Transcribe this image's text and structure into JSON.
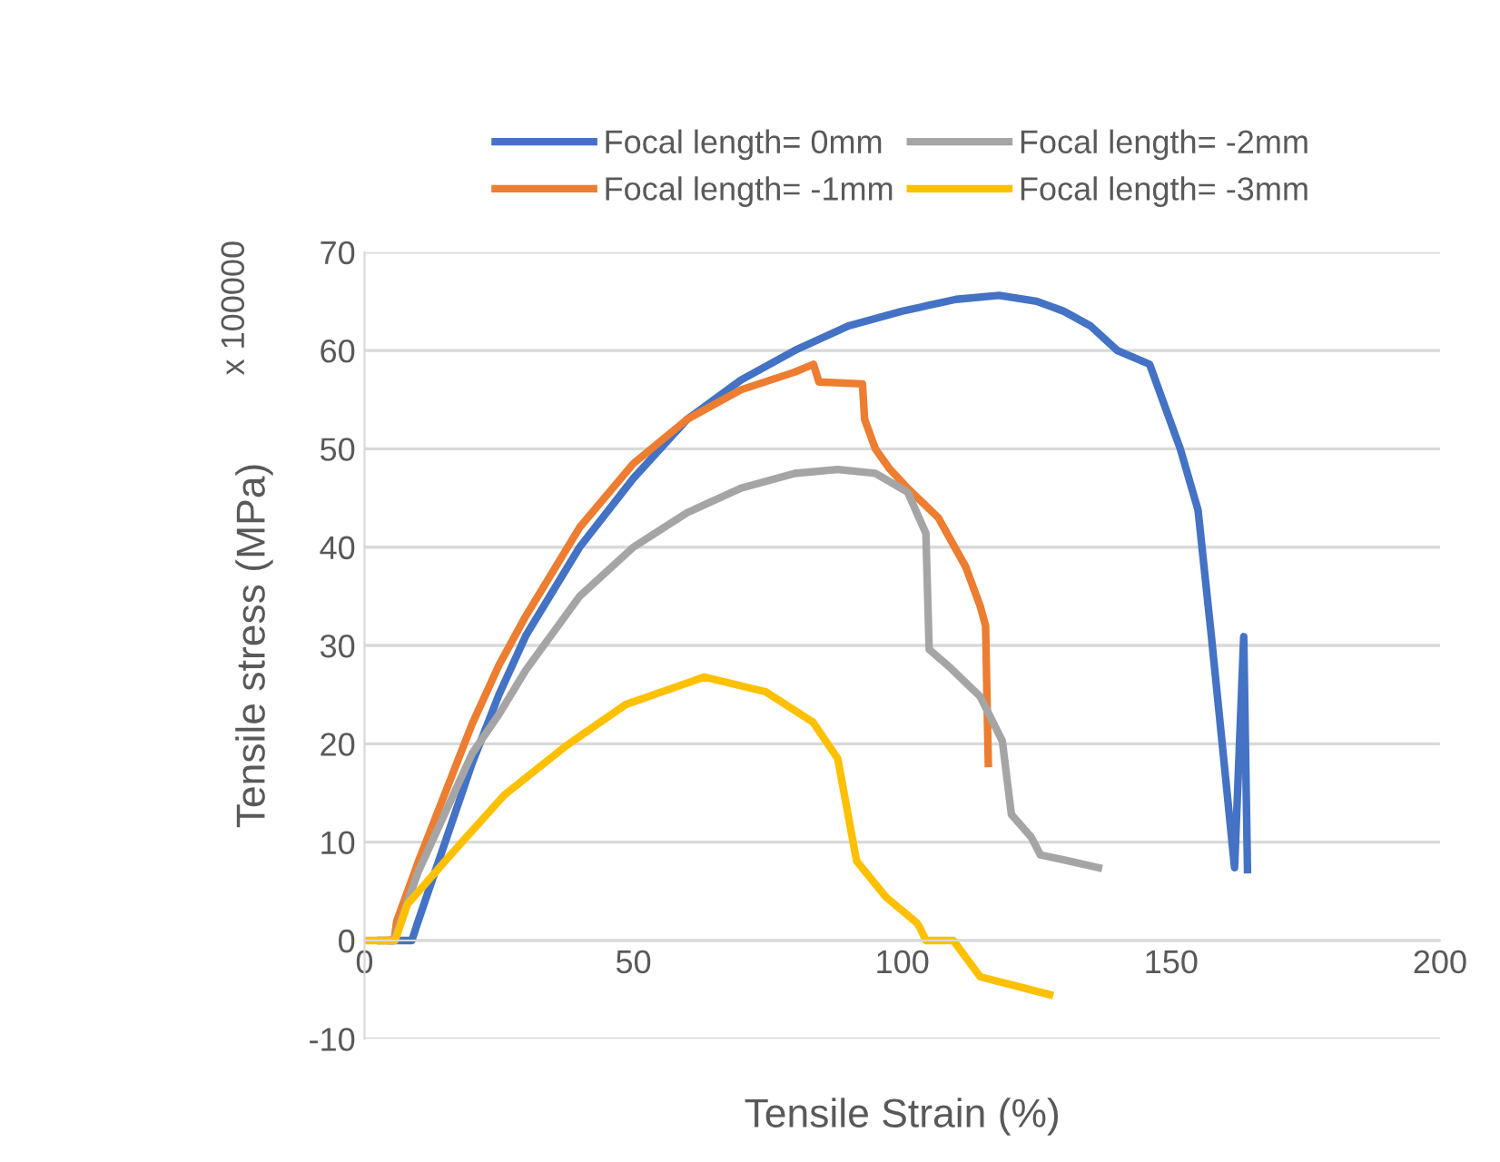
{
  "chart_data": {
    "type": "line",
    "xlabel": "Tensile Strain (%)",
    "ylabel": "Tensile stress (MPa)",
    "annotations": [
      "x 100000"
    ],
    "xlim": [
      0,
      200
    ],
    "xticks": [
      0,
      50,
      100,
      150,
      200
    ],
    "ylim": [
      -10,
      70
    ],
    "yticks": [
      -10,
      0,
      10,
      20,
      30,
      40,
      50,
      60,
      70
    ],
    "grid": "y",
    "legend": "top",
    "marker": "none",
    "line_style": "solid",
    "series": [
      {
        "name": "Focal length= 0mm",
        "color": "#4472c4",
        "x": [
          5,
          8.8,
          10,
          15,
          20,
          25,
          30,
          40,
          50,
          60,
          70,
          80,
          90,
          100,
          110,
          118,
          125,
          130,
          135,
          140,
          146,
          151.7,
          155,
          157.4,
          159.5,
          161.8,
          163.5,
          164.2
        ],
        "values": [
          0,
          0,
          2,
          10,
          18,
          25,
          31,
          40,
          47,
          53,
          57,
          60,
          62.5,
          64,
          65.2,
          65.6,
          65,
          64,
          62.5,
          60,
          58.6,
          50,
          43.8,
          31.4,
          20,
          7.4,
          30.9,
          7.2
        ]
      },
      {
        "name": "Focal length= -1mm",
        "color": "#ed7d31",
        "x": [
          3,
          5.5,
          6,
          10,
          15,
          20,
          25,
          30,
          40,
          50,
          60,
          70,
          80,
          83.5,
          84.5,
          92.6,
          93,
          95,
          97.6,
          101,
          106.7,
          111.8,
          114.5,
          115.5,
          116
        ],
        "values": [
          0,
          0,
          2,
          8,
          15,
          22,
          28,
          33,
          42,
          48.5,
          53,
          56,
          57.8,
          58.6,
          56.8,
          56.6,
          53,
          50,
          48,
          46,
          43,
          38,
          34,
          32,
          18
        ]
      },
      {
        "name": "Focal length= -2mm",
        "color": "#a5a5a5",
        "x": [
          3,
          5.5,
          10,
          15,
          20,
          25,
          30,
          40,
          50,
          60,
          70,
          80,
          88,
          95,
          101,
          104.4,
          105,
          109,
          114.5,
          118.6,
          120.3,
          124,
          125.7,
          130,
          136.5
        ],
        "values": [
          0,
          0,
          7,
          13,
          19,
          23,
          27.5,
          35,
          40,
          43.5,
          46,
          47.5,
          47.9,
          47.5,
          45.6,
          41.4,
          29.6,
          27.7,
          24.8,
          20.3,
          12.8,
          10.5,
          8.7,
          8.2,
          7.4
        ]
      },
      {
        "name": "Focal length= -3mm",
        "color": "#ffc000",
        "x": [
          0.3,
          5.7,
          8,
          16,
          26,
          37.5,
          48.6,
          63.2,
          74.6,
          83.4,
          88,
          91.5,
          97,
          102.7,
          103.3,
          104.4,
          109.5,
          114.5,
          127.4
        ],
        "values": [
          0,
          0,
          3.7,
          8.7,
          14.8,
          19.8,
          24,
          26.8,
          25.3,
          22.2,
          18.5,
          8.1,
          4.4,
          1.8,
          1.3,
          0,
          0,
          -3.7,
          -5.5
        ]
      }
    ]
  }
}
